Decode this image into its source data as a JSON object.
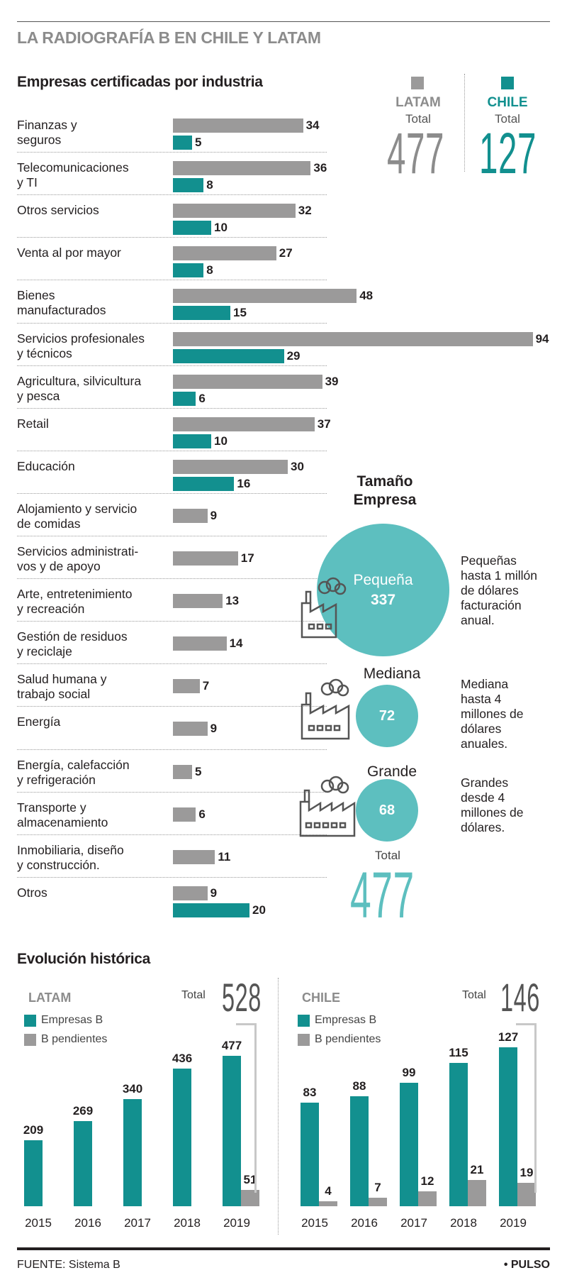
{
  "header": {
    "title": "LA RADIOGRAFÍA B EN CHILE Y LATAM"
  },
  "industry": {
    "subtitle": "Empresas certificadas por industria",
    "latam": {
      "name": "LATAM",
      "total_label": "Total",
      "total": "477"
    },
    "chile": {
      "name": "CHILE",
      "total_label": "Total",
      "total": "127"
    }
  },
  "size": {
    "title_line1": "Tamaño",
    "title_line2": "Empresa",
    "small": {
      "label": "Pequeña",
      "value": "337",
      "desc": [
        "Pequeñas",
        "hasta 1 millón",
        "de dólares",
        "facturación",
        "anual."
      ]
    },
    "medium": {
      "label": "Mediana",
      "value": "72",
      "desc": [
        "Mediana",
        "hasta 4",
        "millones de",
        "dólares",
        "anuales."
      ]
    },
    "large": {
      "label": "Grande",
      "value": "68",
      "desc": [
        "Grandes",
        "desde 4",
        "millones de",
        "dólares."
      ]
    },
    "total_label": "Total",
    "total": "477"
  },
  "history": {
    "title": "Evolución histórica",
    "legend_b": "Empresas B",
    "legend_pending": "B pendientes",
    "latam_label": "LATAM",
    "chile_label": "CHILE",
    "total_label": "Total",
    "latam_total": "528",
    "chile_total": "146"
  },
  "footer": {
    "source": "FUENTE:  Sistema B",
    "brand": "• PULSO"
  },
  "colors": {
    "latam": "#9b9a9a",
    "chile": "#12908f",
    "circle": "#5dbfbf"
  },
  "chart_data": [
    {
      "type": "bar",
      "title": "Empresas certificadas por industria",
      "categories": [
        "Finanzas y seguros",
        "Telecomunicaciones y TI",
        "Otros servicios",
        "Venta al por mayor",
        "Bienes manufacturados",
        "Servicios profesionales y técnicos",
        "Agricultura, silvicultura y pesca",
        "Retail",
        "Educación",
        "Alojamiento y servicio de comidas",
        "Servicios administrati- vos y de apoyo",
        "Arte, entretenimiento y recreación",
        "Gestión de residuos y reciclaje",
        "Salud humana y trabajo social",
        "Energía",
        "Energía, calefacción y refrigeración",
        "Transporte y almacenamiento",
        "Inmobiliaria, diseño y construcción.",
        "Otros"
      ],
      "label_lines": [
        [
          "Finanzas y",
          "seguros"
        ],
        [
          "Telecomunicaciones",
          "y TI"
        ],
        [
          "Otros servicios"
        ],
        [
          "Venta al por mayor"
        ],
        [
          "Bienes",
          "manufacturados"
        ],
        [
          "Servicios profesionales",
          "y técnicos"
        ],
        [
          "Agricultura, silvicultura",
          "y pesca"
        ],
        [
          "Retail"
        ],
        [
          "Educación"
        ],
        [
          "Alojamiento y servicio",
          "de comidas"
        ],
        [
          "Servicios administrati-",
          "vos y de apoyo"
        ],
        [
          "Arte, entretenimiento",
          "y recreación"
        ],
        [
          "Gestión de residuos",
          "y reciclaje"
        ],
        [
          "Salud humana y",
          "trabajo social"
        ],
        [
          "Energía"
        ],
        [
          "Energía, calefacción",
          "y refrigeración"
        ],
        [
          "Transporte y",
          "almacenamiento"
        ],
        [
          "Inmobiliaria, diseño",
          "y construcción."
        ],
        [
          "Otros"
        ]
      ],
      "series": [
        {
          "name": "LATAM",
          "values": [
            34,
            36,
            32,
            27,
            48,
            94,
            39,
            37,
            30,
            9,
            17,
            13,
            14,
            7,
            9,
            5,
            6,
            11,
            9
          ]
        },
        {
          "name": "CHILE",
          "values": [
            5,
            8,
            10,
            8,
            15,
            29,
            6,
            10,
            16,
            null,
            null,
            null,
            null,
            null,
            null,
            null,
            null,
            null,
            20
          ]
        }
      ]
    },
    {
      "type": "bar",
      "title": "LATAM",
      "categories": [
        "2015",
        "2016",
        "2017",
        "2018",
        "2019"
      ],
      "series": [
        {
          "name": "Empresas B",
          "values": [
            209,
            269,
            340,
            436,
            477
          ]
        },
        {
          "name": "B pendientes",
          "values": [
            null,
            null,
            null,
            null,
            51
          ]
        }
      ]
    },
    {
      "type": "bar",
      "title": "CHILE",
      "categories": [
        "2015",
        "2016",
        "2017",
        "2018",
        "2019"
      ],
      "series": [
        {
          "name": "Empresas B",
          "values": [
            83,
            88,
            99,
            115,
            127
          ]
        },
        {
          "name": "B pendientes",
          "values": [
            4,
            7,
            12,
            21,
            19
          ]
        }
      ]
    }
  ]
}
